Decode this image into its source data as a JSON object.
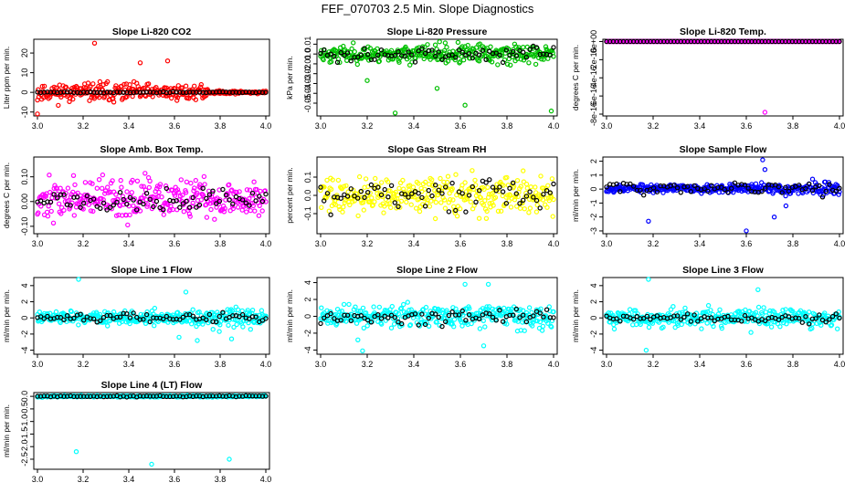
{
  "figure": {
    "title": "FEF_070703  2.5 Min. Slope Diagnostics"
  },
  "chart_data": [
    {
      "type": "scatter",
      "title": "Slope Li-820 CO2",
      "ylabel": "Liter ppm per min.",
      "xlim": [
        3.0,
        4.0
      ],
      "ylim": [
        -12,
        27
      ],
      "xticks": [
        "3.0",
        "3.2",
        "3.4",
        "3.6",
        "3.8",
        "4.0"
      ],
      "yticks": [
        {
          "v": -10,
          "label": "-10"
        },
        {
          "v": 0,
          "label": "0"
        },
        {
          "v": 10,
          "label": "10"
        },
        {
          "v": 20,
          "label": "20"
        }
      ],
      "color": "#ff0000",
      "spread": [
        3.1,
        3.4,
        2.6,
        0.5
      ],
      "center": 0,
      "ref_spread": 0.2,
      "seed": 11,
      "outliers": [
        [
          3.25,
          25
        ],
        [
          3.0,
          -11
        ],
        [
          3.45,
          15
        ],
        [
          3.57,
          16
        ]
      ]
    },
    {
      "type": "scatter",
      "title": "Slope Li-820 Pressure",
      "ylabel": "kPa per min.",
      "xlim": [
        3.0,
        4.0
      ],
      "ylim": [
        -0.063,
        0.015
      ],
      "xticks": [
        "3.0",
        "3.2",
        "3.4",
        "3.6",
        "3.8",
        "4.0"
      ],
      "yticks": [
        {
          "v": -0.05,
          "label": "-0.05"
        },
        {
          "v": -0.04,
          "label": "-0.04"
        },
        {
          "v": -0.03,
          "label": "-0.03"
        },
        {
          "v": -0.02,
          "label": "-0.02"
        },
        {
          "v": -0.01,
          "label": "-0.01"
        },
        {
          "v": 0,
          "label": "0.0"
        },
        {
          "v": 0.01,
          "label": "0.01"
        }
      ],
      "color": "#00c000",
      "spread": [
        0.006,
        0.006,
        0.007,
        0.007
      ],
      "center": 0,
      "ref_spread": 0.005,
      "seed": 23,
      "outliers": [
        [
          3.32,
          -0.06
        ],
        [
          3.62,
          -0.052
        ],
        [
          3.99,
          -0.058
        ],
        [
          3.2,
          -0.027
        ],
        [
          3.5,
          -0.035
        ]
      ]
    },
    {
      "type": "scatter",
      "title": "Slope Li-820 Temp.",
      "ylabel": "degrees C per min.",
      "xlim": [
        3.0,
        4.0
      ],
      "ylim": [
        -8.2e-16,
        2.5e-17
      ],
      "xticks": [
        "3.0",
        "3.2",
        "3.4",
        "3.6",
        "3.8",
        "4.0"
      ],
      "yticks": [
        {
          "v": -8e-16,
          "label": "-8e-16"
        },
        {
          "v": -6e-16,
          "label": "-6e-16"
        },
        {
          "v": -4e-16,
          "label": "-4e-16"
        },
        {
          "v": -2e-16,
          "label": "-2e-16"
        },
        {
          "v": 0,
          "label": "0e+00"
        }
      ],
      "color": "#ff00ff",
      "spread": [
        0,
        0,
        0,
        0
      ],
      "center": 0,
      "ref_spread": 0,
      "seed": 5,
      "outliers": [
        [
          3.68,
          -7.8e-16
        ]
      ]
    },
    {
      "type": "scatter",
      "title": "Slope Amb. Box Temp.",
      "ylabel": "degrees C per min.",
      "xlim": [
        3.0,
        4.0
      ],
      "ylim": [
        -0.13,
        0.18
      ],
      "xticks": [
        "3.0",
        "3.2",
        "3.4",
        "3.6",
        "3.8",
        "4.0"
      ],
      "yticks": [
        {
          "v": -0.1,
          "label": "-0.10"
        },
        {
          "v": 0,
          "label": "0.00"
        },
        {
          "v": 0.1,
          "label": "0.10"
        }
      ],
      "color": "#ff00ff",
      "spread": [
        0.055,
        0.055,
        0.055,
        0.055
      ],
      "center": 0.01,
      "ref_spread": 0.035,
      "seed": 37,
      "outliers": []
    },
    {
      "type": "scatter",
      "title": "Slope Gas Stream RH",
      "ylabel": "percent per min.",
      "xlim": [
        3.0,
        4.0
      ],
      "ylim": [
        -0.21,
        0.21
      ],
      "xticks": [
        "3.0",
        "3.2",
        "3.4",
        "3.6",
        "3.8",
        "4.0"
      ],
      "yticks": [
        {
          "v": -0.1,
          "label": "-0.1"
        },
        {
          "v": 0,
          "label": "0.0"
        },
        {
          "v": 0.1,
          "label": "0.1"
        }
      ],
      "color": "#ffff00",
      "spread": [
        0.07,
        0.07,
        0.07,
        0.07
      ],
      "center": 0,
      "ref_spread": 0.06,
      "seed": 41,
      "outliers": []
    },
    {
      "type": "scatter",
      "title": "Slope Sample Flow",
      "ylabel": "ml/min per min.",
      "xlim": [
        3.0,
        4.0
      ],
      "ylim": [
        -3.2,
        2.3
      ],
      "xticks": [
        "3.0",
        "3.2",
        "3.4",
        "3.6",
        "3.8",
        "4.0"
      ],
      "yticks": [
        {
          "v": -3,
          "label": "-3"
        },
        {
          "v": -2,
          "label": "-2"
        },
        {
          "v": -1,
          "label": "-1"
        },
        {
          "v": 0,
          "label": "0"
        },
        {
          "v": 1,
          "label": "1"
        },
        {
          "v": 2,
          "label": "2"
        }
      ],
      "color": "#0000ff",
      "spread": [
        0.2,
        0.2,
        0.25,
        0.35
      ],
      "center": 0.05,
      "ref_spread": 0.3,
      "seed": 53,
      "outliers": [
        [
          3.67,
          2.1
        ],
        [
          3.18,
          -2.3
        ],
        [
          3.6,
          -3.0
        ],
        [
          3.72,
          -2.0
        ],
        [
          3.77,
          -1.2
        ],
        [
          3.68,
          1.4
        ]
      ]
    },
    {
      "type": "scatter",
      "title": "Slope Line 1 Flow",
      "ylabel": "ml/min per min.",
      "xlim": [
        3.0,
        4.0
      ],
      "ylim": [
        -4.5,
        5.0
      ],
      "xticks": [
        "3.0",
        "3.2",
        "3.4",
        "3.6",
        "3.8",
        "4.0"
      ],
      "yticks": [
        {
          "v": -4,
          "label": "-4"
        },
        {
          "v": -2,
          "label": "-2"
        },
        {
          "v": 0,
          "label": "0"
        },
        {
          "v": 2,
          "label": "2"
        },
        {
          "v": 4,
          "label": "4"
        }
      ],
      "color": "#00ffff",
      "spread": [
        0.6,
        0.6,
        0.7,
        0.9
      ],
      "center": 0,
      "ref_spread": 0.35,
      "seed": 61,
      "outliers": [
        [
          3.18,
          4.8
        ],
        [
          3.65,
          3.2
        ],
        [
          3.62,
          -2.4
        ],
        [
          3.7,
          -2.8
        ],
        [
          3.85,
          -2.6
        ]
      ]
    },
    {
      "type": "scatter",
      "title": "Slope Line 2 Flow",
      "ylabel": "ml/min per min.",
      "xlim": [
        3.0,
        4.0
      ],
      "ylim": [
        -4.5,
        4.6
      ],
      "xticks": [
        "3.0",
        "3.2",
        "3.4",
        "3.6",
        "3.8",
        "4.0"
      ],
      "yticks": [
        {
          "v": -4,
          "label": "-4"
        },
        {
          "v": -2,
          "label": "-2"
        },
        {
          "v": 0,
          "label": "0"
        },
        {
          "v": 2,
          "label": "2"
        },
        {
          "v": 4,
          "label": "4"
        }
      ],
      "color": "#00ffff",
      "spread": [
        0.8,
        0.9,
        0.9,
        1.0
      ],
      "center": 0,
      "ref_spread": 0.6,
      "seed": 71,
      "outliers": [
        [
          3.18,
          -4.1
        ],
        [
          3.16,
          -2.8
        ],
        [
          3.62,
          3.8
        ],
        [
          3.72,
          3.8
        ],
        [
          3.7,
          -3.5
        ]
      ]
    },
    {
      "type": "scatter",
      "title": "Slope Line 3 Flow",
      "ylabel": "ml/min per min.",
      "xlim": [
        3.0,
        4.0
      ],
      "ylim": [
        -4.5,
        5.0
      ],
      "xticks": [
        "3.0",
        "3.2",
        "3.4",
        "3.6",
        "3.8",
        "4.0"
      ],
      "yticks": [
        {
          "v": -4,
          "label": "-4"
        },
        {
          "v": -2,
          "label": "-2"
        },
        {
          "v": 0,
          "label": "0"
        },
        {
          "v": 2,
          "label": "2"
        },
        {
          "v": 4,
          "label": "4"
        }
      ],
      "color": "#00ffff",
      "spread": [
        0.7,
        0.8,
        0.8,
        0.8
      ],
      "center": 0,
      "ref_spread": 0.4,
      "seed": 83,
      "outliers": [
        [
          3.18,
          4.8
        ],
        [
          3.17,
          -4.0
        ],
        [
          3.65,
          3.5
        ],
        [
          3.62,
          -1.8
        ]
      ]
    },
    {
      "type": "scatter",
      "title": "Slope Line 4 (LT) Flow",
      "ylabel": "ml/min per min.",
      "xlim": [
        3.0,
        4.0
      ],
      "ylim": [
        -2.9,
        0.15
      ],
      "xticks": [
        "3.0",
        "3.2",
        "3.4",
        "3.6",
        "3.8",
        "4.0"
      ],
      "yticks": [
        {
          "v": -2.5,
          "label": "-2.5"
        },
        {
          "v": -2,
          "label": "-2.0"
        },
        {
          "v": -1.5,
          "label": "-1.5"
        },
        {
          "v": -1,
          "label": "-1.0"
        },
        {
          "v": -0.5,
          "label": "-0.5"
        },
        {
          "v": 0,
          "label": "0.0"
        }
      ],
      "color": "#00ffff",
      "spread": [
        0.02,
        0.02,
        0.02,
        0.02
      ],
      "center": 0,
      "ref_spread": 0.02,
      "seed": 97,
      "outliers": [
        [
          3.17,
          -2.2
        ],
        [
          3.5,
          -2.7
        ],
        [
          3.84,
          -2.5
        ]
      ]
    }
  ]
}
